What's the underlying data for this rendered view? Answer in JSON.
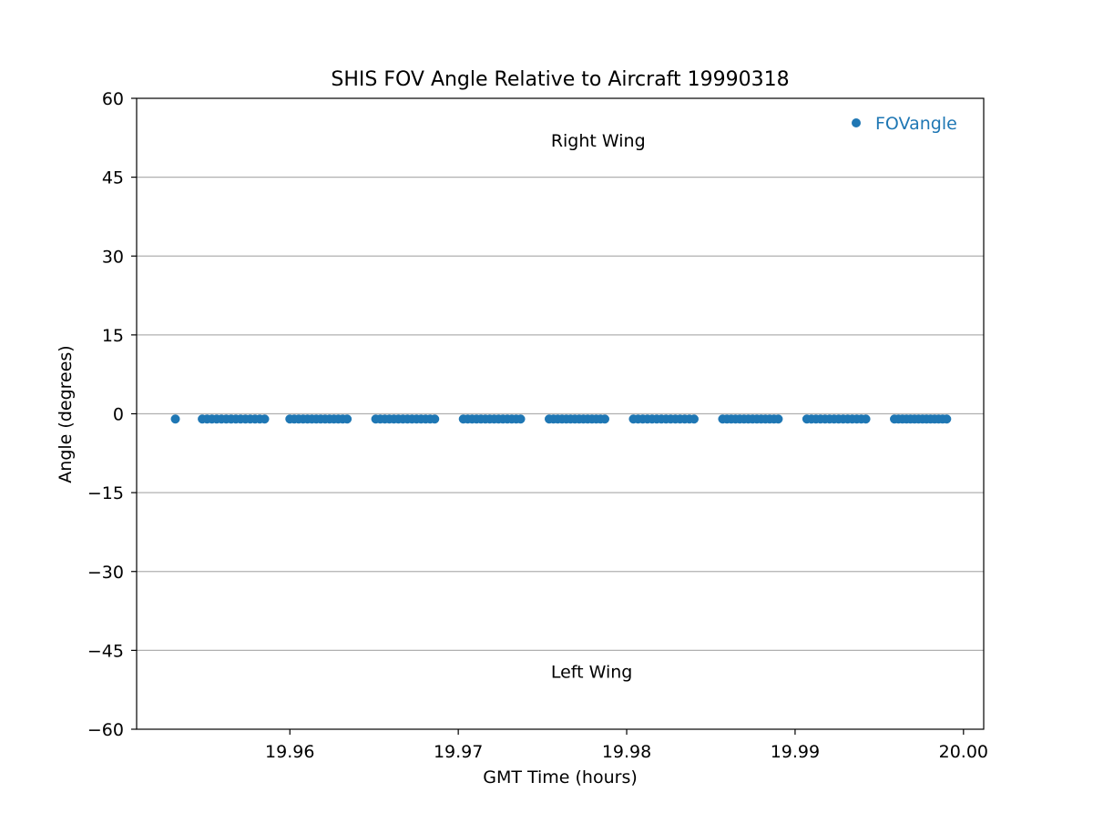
{
  "chart_data": {
    "type": "scatter",
    "title": "SHIS FOV Angle Relative to Aircraft 19990318",
    "xlabel": "GMT Time (hours)",
    "ylabel": "Angle (degrees)",
    "xlim": [
      19.9509,
      20.0012
    ],
    "ylim": [
      -60,
      60
    ],
    "x_ticks": [
      19.96,
      19.97,
      19.98,
      19.99,
      20.0
    ],
    "x_tick_labels": [
      "19.96",
      "19.97",
      "19.98",
      "19.99",
      "20.00"
    ],
    "y_ticks": [
      -60,
      -45,
      -30,
      -15,
      0,
      15,
      30,
      45,
      60
    ],
    "y_tick_labels": [
      "−60",
      "−45",
      "−30",
      "−15",
      "0",
      "15",
      "30",
      "45",
      "60"
    ],
    "grid": "horizontal",
    "legend": {
      "position": "top-right",
      "entries": [
        "FOVangle"
      ]
    },
    "series": [
      {
        "name": "FOVangle",
        "color": "#1f77b4",
        "marker": "circle",
        "groups": [
          {
            "x_start": 19.9532,
            "x_end": 19.9532,
            "count": 1
          },
          {
            "x_start": 19.9548,
            "x_end": 19.9585,
            "count": 14
          },
          {
            "x_start": 19.96,
            "x_end": 19.9634,
            "count": 14
          },
          {
            "x_start": 19.9651,
            "x_end": 19.9686,
            "count": 14
          },
          {
            "x_start": 19.9703,
            "x_end": 19.9737,
            "count": 14
          },
          {
            "x_start": 19.9754,
            "x_end": 19.9787,
            "count": 14
          },
          {
            "x_start": 19.9804,
            "x_end": 19.984,
            "count": 14
          },
          {
            "x_start": 19.9857,
            "x_end": 19.989,
            "count": 14
          },
          {
            "x_start": 19.9907,
            "x_end": 19.9942,
            "count": 14
          },
          {
            "x_start": 19.9959,
            "x_end": 19.999,
            "count": 14
          }
        ],
        "y_value": -1.0
      }
    ],
    "annotations": [
      {
        "text": "Right Wing",
        "x": 19.9755,
        "y": 52
      },
      {
        "text": "Left Wing",
        "x": 19.9755,
        "y": -49
      }
    ]
  }
}
